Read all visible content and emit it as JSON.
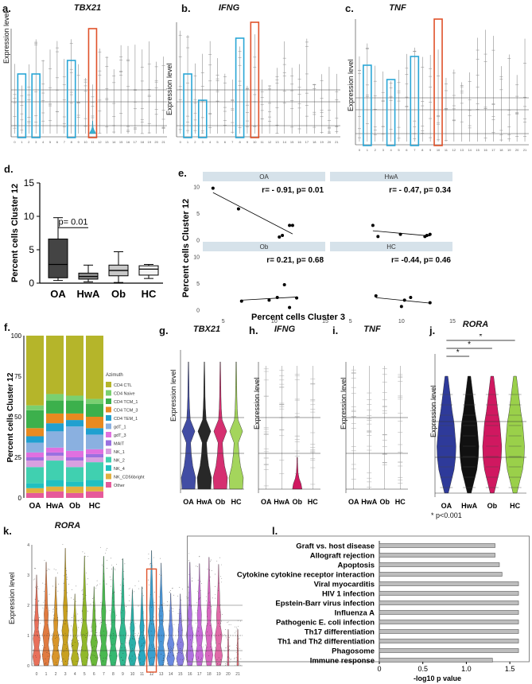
{
  "panels": {
    "a": {
      "label": "a.",
      "title": "TBX21"
    },
    "b": {
      "label": "b.",
      "title": "IFNG",
      "ylabel": "Expression level"
    },
    "c": {
      "label": "c.",
      "title": "TNF",
      "ylabel": "Expression level"
    },
    "a_ylabel": "Expression level",
    "d": {
      "label": "d."
    },
    "e": {
      "label": "e."
    },
    "f": {
      "label": "f."
    },
    "g": {
      "label": "g.",
      "title": "TBX21",
      "ylabel": "Expression level"
    },
    "h": {
      "label": "h.",
      "title": "IFNG",
      "ylabel": "Expression level"
    },
    "i": {
      "label": "i.",
      "title": "TNF",
      "ylabel": "Expression level"
    },
    "j": {
      "label": "j.",
      "title": "RORA",
      "ylabel": "Expression level",
      "note": "* p<0.001",
      "star": "*"
    },
    "k": {
      "label": "k.",
      "title": "RORA",
      "ylabel": "Expression level"
    },
    "l": {
      "label": "l."
    }
  },
  "group_labels": [
    "OA",
    "HwA",
    "Ob",
    "HC"
  ],
  "colors": {
    "blue_box": "#2aa6d6",
    "orange_box": "#e0522a",
    "OA": "#2e3a9a",
    "HwA": "#111111",
    "Ob": "#d01860",
    "HC": "#9ad04a"
  },
  "chart_data": [
    {
      "panel": "d",
      "type": "box",
      "categories": [
        "OA",
        "HwA",
        "Ob",
        "HC"
      ],
      "ylabel": "Percent cells Cluster 12",
      "ylim": [
        0,
        15
      ],
      "yticks": [
        "0",
        "5",
        "10",
        "15"
      ],
      "boxes": [
        {
          "name": "OA",
          "min": 0.4,
          "q1": 0.8,
          "median": 2.8,
          "q3": 6.6,
          "max": 9.8
        },
        {
          "name": "HwA",
          "min": 0.2,
          "q1": 0.6,
          "median": 1.0,
          "q3": 1.5,
          "max": 2.7
        },
        {
          "name": "Ob",
          "min": 0.1,
          "q1": 1.1,
          "median": 1.9,
          "q3": 2.7,
          "max": 4.7
        },
        {
          "name": "HC",
          "min": 0.7,
          "q1": 1.2,
          "median": 2.1,
          "q3": 2.6,
          "max": 2.8
        }
      ],
      "annotation": "p= 0.01"
    },
    {
      "panel": "e",
      "type": "scatter",
      "xlabel": "Percent cells Cluster 3",
      "ylabel": "Percent cells Cluster 12",
      "xlim": [
        3,
        15
      ],
      "ylim": [
        -1,
        11
      ],
      "xticks": [
        "5",
        "10",
        "15"
      ],
      "yticks": [
        "0",
        "5",
        "10"
      ],
      "facets": [
        {
          "name": "OA",
          "stat": "r= - 0.91, p= 0.01",
          "points": [
            [
              4,
              9.7
            ],
            [
              6.5,
              5.8
            ],
            [
              10.5,
              0.5
            ],
            [
              10.8,
              0.8
            ],
            [
              11.5,
              2.7
            ],
            [
              11.8,
              2.7
            ]
          ]
        },
        {
          "name": "HwA",
          "stat": "r= - 0.47, p= 0.34",
          "points": [
            [
              7.2,
              2.7
            ],
            [
              7.7,
              0.6
            ],
            [
              9.9,
              1.0
            ],
            [
              12.3,
              0.6
            ],
            [
              12.5,
              0.8
            ],
            [
              12.8,
              1.0
            ]
          ]
        },
        {
          "name": "Ob",
          "stat": "r= 0.21, p= 0.68",
          "points": [
            [
              6.8,
              1.6
            ],
            [
              9.5,
              1.8
            ],
            [
              10.3,
              2.3
            ],
            [
              11.0,
              4.7
            ],
            [
              11.5,
              0.4
            ],
            [
              12.2,
              2.2
            ]
          ]
        },
        {
          "name": "HC",
          "stat": "r= -0.44, p= 0.46",
          "points": [
            [
              7.5,
              2.6
            ],
            [
              10.0,
              0.6
            ],
            [
              10.3,
              1.8
            ],
            [
              10.9,
              2.3
            ],
            [
              12.8,
              1.3
            ]
          ]
        }
      ]
    },
    {
      "panel": "f",
      "type": "stacked_bar",
      "ylabel": "Percent cells Cluster 12",
      "ylim": [
        0,
        100
      ],
      "yticks": [
        "0",
        "25",
        "50",
        "75",
        "100"
      ],
      "legend_title": "Azimuth",
      "categories": [
        "OA",
        "HwA",
        "Ob",
        "HC"
      ],
      "series": [
        {
          "name": "Other",
          "color": "#e65a9a",
          "values": [
            3,
            4,
            3,
            4
          ]
        },
        {
          "name": "NK_CD56bright",
          "color": "#e0b040",
          "values": [
            3,
            3,
            4,
            3
          ]
        },
        {
          "name": "NK_4",
          "color": "#20c0c0",
          "values": [
            3,
            4,
            3,
            4
          ]
        },
        {
          "name": "NK_2",
          "color": "#40d0b0",
          "values": [
            10,
            12,
            9,
            11
          ]
        },
        {
          "name": "NK_1",
          "color": "#d8a0e0",
          "values": [
            4,
            3,
            4,
            3
          ]
        },
        {
          "name": "MAIT",
          "color": "#9a70e0",
          "values": [
            2,
            2,
            2,
            2
          ]
        },
        {
          "name": "gdT_3",
          "color": "#e070e0",
          "values": [
            3,
            3,
            4,
            3
          ]
        },
        {
          "name": "gdT_1",
          "color": "#8ab0e0",
          "values": [
            6,
            10,
            15,
            9
          ]
        },
        {
          "name": "CD4 TEM_1",
          "color": "#20a0d0",
          "values": [
            4,
            5,
            4,
            4
          ]
        },
        {
          "name": "CD4 TCM_3",
          "color": "#e88a20",
          "values": [
            5,
            6,
            4,
            7
          ]
        },
        {
          "name": "CD4 TCM_1",
          "color": "#3cb04c",
          "values": [
            11,
            8,
            8,
            8
          ]
        },
        {
          "name": "CD4 Naive",
          "color": "#7ad070",
          "values": [
            3,
            4,
            3,
            3
          ]
        },
        {
          "name": "CD4 CTL",
          "color": "#b5b52a",
          "values": [
            43,
            36,
            37,
            39
          ]
        }
      ]
    },
    {
      "panel": "l",
      "type": "bar",
      "orientation": "horizontal",
      "xlabel": "-log10 p value",
      "xlim": [
        0,
        1.7
      ],
      "xticks": [
        "0",
        "0.5",
        "1.0",
        "1.5"
      ],
      "categories": [
        "Graft vs. host disease",
        "Allograft rejection",
        "Apoptosis",
        "Cytokine cytokine receptor interaction",
        "Viral myocarditis",
        "HIV 1 infection",
        "Epstein-Barr virus infection",
        "Influenza A",
        "Pathogenic E. coli infection",
        "Th17 differentiation",
        "Th1 and Th2 differentiation",
        "Phagosome",
        "Immune response"
      ],
      "values": [
        1.33,
        1.33,
        1.38,
        1.41,
        1.6,
        1.6,
        1.6,
        1.6,
        1.6,
        1.6,
        1.6,
        1.6,
        1.3
      ]
    },
    {
      "panel": "k",
      "type": "violin",
      "categories": [
        "0",
        "1",
        "2",
        "3",
        "4",
        "5",
        "6",
        "7",
        "8",
        "9",
        "10",
        "11",
        "12",
        "13",
        "14",
        "15",
        "16",
        "17",
        "18",
        "19",
        "20",
        "21"
      ],
      "yticks": [
        "0",
        "1",
        "2",
        "3",
        "4"
      ],
      "highlight": "12"
    }
  ],
  "cluster_ticks_abc": [
    "0",
    "1",
    "2",
    "3",
    "4",
    "5",
    "6",
    "7",
    "8",
    "9",
    "10",
    "11",
    "12",
    "13",
    "14",
    "15",
    "16",
    "17",
    "18",
    "19",
    "20",
    "21"
  ]
}
